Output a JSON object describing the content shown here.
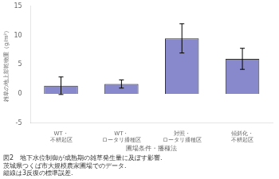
{
  "chart_data": {
    "type": "bar",
    "categories": [
      "WT・\n不耕起区",
      "WT・\nロータリ播種区",
      "対照・\nロータリ播種区",
      "傾斜化・\n不耕起区"
    ],
    "values": [
      1.4,
      1.7,
      9.5,
      6.0
    ],
    "errors": [
      1.5,
      0.7,
      2.5,
      1.8
    ],
    "color": "#8888cc",
    "xlabel": "圃場条件・播種法",
    "ylabel": "雑草の地上部乾物重（g/m²）",
    "caption": [
      "図2　地下水位制御が成熟期の雑草発生量に及ぼす影響.",
      "茨城県つくば市大規模農家圃場でのデータ.",
      "縦線は3反復の標準誤差."
    ],
    "ylim": [
      -5,
      15
    ],
    "yticks": [
      -5,
      0,
      5,
      10,
      15
    ],
    "grid": false
  }
}
